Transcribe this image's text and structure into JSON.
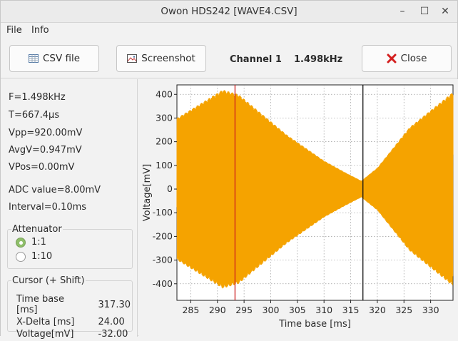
{
  "window": {
    "title": "Owon HDS242 [WAVE4.CSV]",
    "controls": {
      "minimize": "–",
      "maximize": "☐",
      "close": "✕"
    }
  },
  "menu": {
    "file": "File",
    "info": "Info"
  },
  "toolbar": {
    "csv_label": "CSV file",
    "screenshot_label": "Screenshot",
    "channel_label": "Channel 1",
    "frequency": "1.498kHz",
    "close_label": "Close"
  },
  "measurements": {
    "frequency": "F=1.498kHz",
    "period": "T=667.4µs",
    "vpp": "Vpp=920.00mV",
    "avgv": "AvgV=0.947mV",
    "vpos": "VPos=0.00mV",
    "adc": "ADC value=8.00mV",
    "interval": "Interval=0.10ms"
  },
  "attenuator": {
    "title": "Attenuator",
    "options": [
      {
        "label": "1:1",
        "selected": true
      },
      {
        "label": "1:10",
        "selected": false
      }
    ]
  },
  "cursor": {
    "title": "Cursor (+ Shift)",
    "rows": [
      {
        "label": "Time base [ms]",
        "value": "317.30"
      },
      {
        "label": "X-Delta [ms]",
        "value": "24.00"
      },
      {
        "label": "Voltage[mV]",
        "value": "-32.00"
      }
    ]
  },
  "colors": {
    "signal": "#f5a300",
    "red_cursor": "#cc1f1f",
    "black_cursor": "#111111",
    "grid": "#9a9a9a"
  },
  "chart_data": {
    "type": "line",
    "xlabel": "Time base [ms]",
    "ylabel": "Voltage[mV]",
    "xlim": [
      282.4,
      334.2
    ],
    "ylim": [
      -470,
      440
    ],
    "x_ticks": [
      285,
      290,
      295,
      300,
      305,
      310,
      315,
      320,
      325,
      330
    ],
    "y_ticks": [
      400,
      300,
      200,
      100,
      0,
      -100,
      -200,
      -300,
      -400
    ],
    "grid": true,
    "signal": {
      "frequency_khz": 1.498,
      "envelope_points": [
        {
          "x": 282.4,
          "amp": 300
        },
        {
          "x": 291.0,
          "amp": 420
        },
        {
          "x": 294.0,
          "amp": 400
        },
        {
          "x": 303.0,
          "amp": 230
        },
        {
          "x": 310.0,
          "amp": 120
        },
        {
          "x": 314.0,
          "amp": 70
        },
        {
          "x": 317.0,
          "amp": 35
        },
        {
          "x": 320.0,
          "amp": 90
        },
        {
          "x": 326.0,
          "amp": 260
        },
        {
          "x": 334.2,
          "amp": 410
        }
      ]
    },
    "cursors": [
      {
        "x": 293.3,
        "color": "red"
      },
      {
        "x": 317.3,
        "color": "black"
      }
    ]
  }
}
